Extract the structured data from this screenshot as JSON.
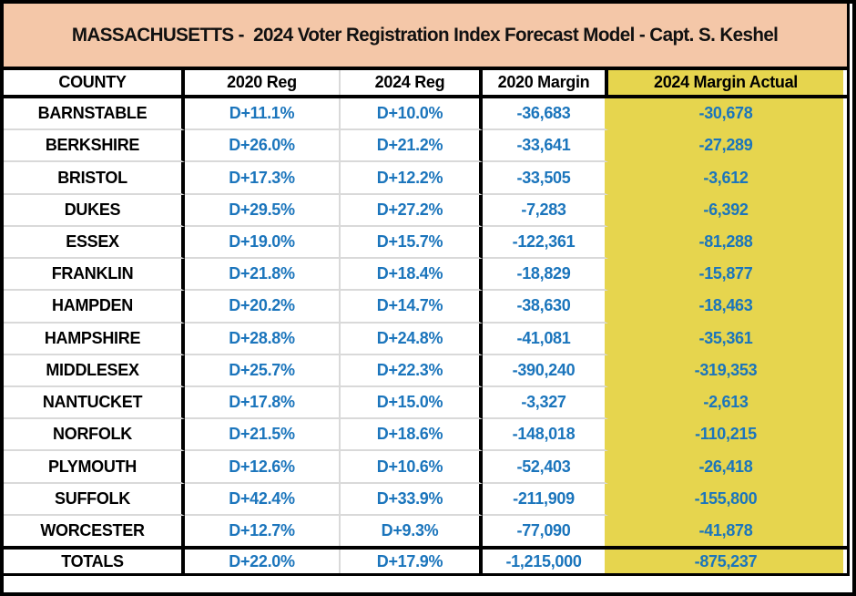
{
  "title": "MASSACHUSETTS -  2024 Voter Registration Index Forecast Model - Capt. S. Keshel",
  "chart_data": {
    "type": "table",
    "title": "MASSACHUSETTS -  2024 Voter Registration Index Forecast Model - Capt. S. Keshel",
    "columns": [
      "COUNTY",
      "2020 Reg",
      "2024 Reg",
      "2020 Margin",
      "2024 Margin Actual"
    ],
    "rows": [
      {
        "county": "BARNSTABLE",
        "reg2020": "D+11.1%",
        "reg2024": "D+10.0%",
        "margin2020": "-36,683",
        "margin2024": "-30,678"
      },
      {
        "county": "BERKSHIRE",
        "reg2020": "D+26.0%",
        "reg2024": "D+21.2%",
        "margin2020": "-33,641",
        "margin2024": "-27,289"
      },
      {
        "county": "BRISTOL",
        "reg2020": "D+17.3%",
        "reg2024": "D+12.2%",
        "margin2020": "-33,505",
        "margin2024": "-3,612"
      },
      {
        "county": "DUKES",
        "reg2020": "D+29.5%",
        "reg2024": "D+27.2%",
        "margin2020": "-7,283",
        "margin2024": "-6,392"
      },
      {
        "county": "ESSEX",
        "reg2020": "D+19.0%",
        "reg2024": "D+15.7%",
        "margin2020": "-122,361",
        "margin2024": "-81,288"
      },
      {
        "county": "FRANKLIN",
        "reg2020": "D+21.8%",
        "reg2024": "D+18.4%",
        "margin2020": "-18,829",
        "margin2024": "-15,877"
      },
      {
        "county": "HAMPDEN",
        "reg2020": "D+20.2%",
        "reg2024": "D+14.7%",
        "margin2020": "-38,630",
        "margin2024": "-18,463"
      },
      {
        "county": "HAMPSHIRE",
        "reg2020": "D+28.8%",
        "reg2024": "D+24.8%",
        "margin2020": "-41,081",
        "margin2024": "-35,361"
      },
      {
        "county": "MIDDLESEX",
        "reg2020": "D+25.7%",
        "reg2024": "D+22.3%",
        "margin2020": "-390,240",
        "margin2024": "-319,353"
      },
      {
        "county": "NANTUCKET",
        "reg2020": "D+17.8%",
        "reg2024": "D+15.0%",
        "margin2020": "-3,327",
        "margin2024": "-2,613"
      },
      {
        "county": "NORFOLK",
        "reg2020": "D+21.5%",
        "reg2024": "D+18.6%",
        "margin2020": "-148,018",
        "margin2024": "-110,215"
      },
      {
        "county": "PLYMOUTH",
        "reg2020": "D+12.6%",
        "reg2024": "D+10.6%",
        "margin2020": "-52,403",
        "margin2024": "-26,418"
      },
      {
        "county": "SUFFOLK",
        "reg2020": "D+42.4%",
        "reg2024": "D+33.9%",
        "margin2020": "-211,909",
        "margin2024": "-155,800"
      },
      {
        "county": "WORCESTER",
        "reg2020": "D+12.7%",
        "reg2024": "D+9.3%",
        "margin2020": "-77,090",
        "margin2024": "-41,878"
      }
    ],
    "totals": {
      "county": "TOTALS",
      "reg2020": "D+22.0%",
      "reg2024": "D+17.9%",
      "margin2020": "-1,215,000",
      "margin2024": "-875,237"
    },
    "layout": {
      "highlighted_column": "2024 Margin Actual",
      "grid": "on"
    }
  },
  "colors": {
    "title_background": "#f4c7a8",
    "highlight_yellow": "#e6d54e",
    "data_blue": "#1b75bc",
    "grid_gray": "#d9d9d9",
    "border_black": "#000000",
    "page_background": "#ffffff"
  }
}
